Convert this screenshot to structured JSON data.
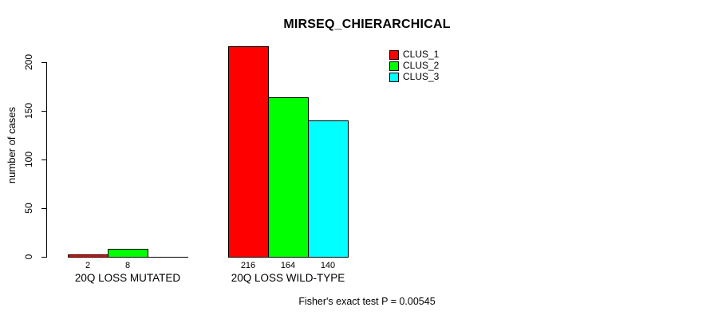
{
  "chart_data": {
    "type": "bar",
    "title": "MIRSEQ_CHIERARCHICAL",
    "ylabel": "number of cases",
    "xlabel": "",
    "footnote": "Fisher's exact test P = 0.00545",
    "yticks": [
      0,
      50,
      100,
      150,
      200
    ],
    "ylim": [
      0,
      216
    ],
    "grid": "off",
    "legend_position": "top-right",
    "categories": [
      "20Q LOSS MUTATED",
      "20Q LOSS WILD-TYPE"
    ],
    "series": [
      {
        "name": "CLUS_1",
        "color": "#ff0000",
        "values": [
          2,
          216
        ]
      },
      {
        "name": "CLUS_2",
        "color": "#00ff00",
        "values": [
          8,
          164
        ]
      },
      {
        "name": "CLUS_3",
        "color": "#00ffff",
        "values": [
          0,
          140
        ]
      }
    ],
    "bar_value_labels": [
      [
        "2",
        "8",
        ""
      ],
      [
        "216",
        "164",
        "140"
      ]
    ]
  }
}
